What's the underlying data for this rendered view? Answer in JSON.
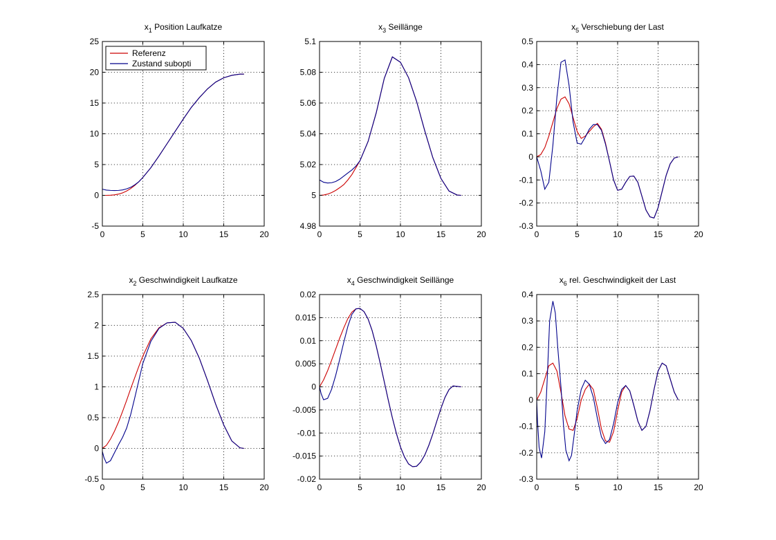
{
  "colors": {
    "reference": "#cc0000",
    "state": "#00008b",
    "grid": "#000000",
    "axes": "#000000"
  },
  "legend": {
    "placement": "top-left",
    "entries": [
      "Referenz",
      "Zustand subopti"
    ]
  },
  "chart_data": [
    {
      "type": "line",
      "title": {
        "sym": "x",
        "sub": "1",
        "text": "Position Laufkatze"
      },
      "xlim": [
        0,
        20
      ],
      "ylim": [
        -5,
        25
      ],
      "xticks": [
        0,
        5,
        10,
        15,
        20
      ],
      "xtick_labels": [
        "0",
        "5",
        "10",
        "15",
        "20"
      ],
      "yticks": [
        -5,
        0,
        5,
        10,
        15,
        20,
        25
      ],
      "ytick_labels": [
        "-5",
        "0",
        "5",
        "10",
        "15",
        "20",
        "25"
      ],
      "grid": true,
      "legend": true,
      "series": [
        {
          "name": "Referenz",
          "color": "#cc0000",
          "x": [
            0,
            0.5,
            1,
            1.5,
            2,
            2.5,
            3,
            3.5,
            4,
            4.5,
            5,
            6,
            7,
            8,
            9,
            10,
            11,
            12,
            13,
            14,
            15,
            16,
            17,
            17.5
          ],
          "y": [
            0,
            0,
            0.02,
            0.08,
            0.2,
            0.4,
            0.7,
            1.1,
            1.6,
            2.2,
            2.9,
            4.5,
            6.4,
            8.4,
            10.4,
            12.4,
            14.3,
            15.9,
            17.3,
            18.4,
            19.1,
            19.5,
            19.7,
            19.7
          ]
        },
        {
          "name": "Zustand subopti",
          "color": "#00008b",
          "x": [
            0,
            0.5,
            1,
            1.5,
            2,
            2.5,
            3,
            3.5,
            4,
            4.5,
            5,
            6,
            7,
            8,
            9,
            10,
            11,
            12,
            13,
            14,
            15,
            16,
            17,
            17.5
          ],
          "y": [
            1.0,
            0.85,
            0.8,
            0.78,
            0.8,
            0.88,
            1.05,
            1.3,
            1.7,
            2.2,
            2.9,
            4.5,
            6.4,
            8.4,
            10.4,
            12.4,
            14.3,
            15.9,
            17.3,
            18.4,
            19.1,
            19.5,
            19.7,
            19.7
          ]
        }
      ]
    },
    {
      "type": "line",
      "title": {
        "sym": "x",
        "sub": "3",
        "text": "Seillänge"
      },
      "xlim": [
        0,
        20
      ],
      "ylim": [
        4.98,
        5.1
      ],
      "xticks": [
        0,
        5,
        10,
        15,
        20
      ],
      "xtick_labels": [
        "0",
        "5",
        "10",
        "15",
        "20"
      ],
      "yticks": [
        4.98,
        5,
        5.02,
        5.04,
        5.06,
        5.08,
        5.1
      ],
      "ytick_labels": [
        "4.98",
        "5",
        "5.02",
        "5.04",
        "5.06",
        "5.08",
        "5.1"
      ],
      "grid": true,
      "legend": false,
      "series": [
        {
          "color": "#cc0000",
          "x": [
            0,
            0.5,
            1,
            1.5,
            2,
            2.5,
            3,
            3.5,
            4,
            4.5,
            5,
            6,
            7,
            8,
            9,
            10,
            11,
            12,
            13,
            14,
            15,
            16,
            17,
            17.5
          ],
          "y": [
            5,
            5.0002,
            5.0008,
            5.0018,
            5.0032,
            5.005,
            5.007,
            5.01,
            5.0135,
            5.018,
            5.0225,
            5.035,
            5.0535,
            5.076,
            5.09,
            5.0865,
            5.0765,
            5.061,
            5.042,
            5.0245,
            5.011,
            5.0028,
            5.0002,
            5
          ]
        },
        {
          "color": "#00008b",
          "x": [
            0,
            0.5,
            1,
            1.5,
            2,
            2.5,
            3,
            3.5,
            4,
            4.5,
            5,
            6,
            7,
            8,
            9,
            10,
            11,
            12,
            13,
            14,
            15,
            16,
            17,
            17.5
          ],
          "y": [
            5.01,
            5.0085,
            5.008,
            5.0082,
            5.009,
            5.0105,
            5.0125,
            5.0145,
            5.0165,
            5.019,
            5.0225,
            5.035,
            5.0535,
            5.076,
            5.09,
            5.0865,
            5.0765,
            5.061,
            5.042,
            5.0245,
            5.011,
            5.0028,
            5.0002,
            5
          ]
        }
      ]
    },
    {
      "type": "line",
      "title": {
        "sym": "x",
        "sub": "5",
        "text": "Verschiebung der Last"
      },
      "xlim": [
        0,
        20
      ],
      "ylim": [
        -0.3,
        0.5
      ],
      "xticks": [
        0,
        5,
        10,
        15,
        20
      ],
      "xtick_labels": [
        "0",
        "5",
        "10",
        "15",
        "20"
      ],
      "yticks": [
        -0.3,
        -0.2,
        -0.1,
        0,
        0.1,
        0.2,
        0.3,
        0.4,
        0.5
      ],
      "ytick_labels": [
        "-0.3",
        "-0.2",
        "-0.1",
        "0",
        "0.1",
        "0.2",
        "0.3",
        "0.4",
        "0.5"
      ],
      "grid": true,
      "legend": false,
      "series": [
        {
          "color": "#cc0000",
          "x": [
            0,
            0.5,
            1,
            1.5,
            2,
            2.5,
            3,
            3.5,
            4,
            4.5,
            5,
            5.5,
            6,
            6.5,
            7,
            7.5,
            8,
            8.5,
            9,
            9.5,
            10,
            10.5,
            11,
            11.5,
            12,
            12.5,
            13,
            13.5,
            14,
            14.5,
            15,
            15.5,
            16,
            16.5,
            17,
            17.5
          ],
          "y": [
            0,
            0.01,
            0.04,
            0.09,
            0.15,
            0.21,
            0.25,
            0.26,
            0.23,
            0.17,
            0.11,
            0.08,
            0.09,
            0.11,
            0.13,
            0.145,
            0.12,
            0.06,
            -0.02,
            -0.1,
            -0.145,
            -0.14,
            -0.11,
            -0.085,
            -0.083,
            -0.11,
            -0.17,
            -0.23,
            -0.26,
            -0.265,
            -0.22,
            -0.15,
            -0.08,
            -0.03,
            -0.005,
            0
          ]
        },
        {
          "color": "#00008b",
          "x": [
            0,
            0.5,
            1,
            1.5,
            2,
            2.5,
            3,
            3.5,
            4,
            4.5,
            5,
            5.5,
            6,
            6.5,
            7,
            7.5,
            8,
            8.5,
            9,
            9.5,
            10,
            10.5,
            11,
            11.5,
            12,
            12.5,
            13,
            13.5,
            14,
            14.5,
            15,
            15.5,
            16,
            16.5,
            17,
            17.5
          ],
          "y": [
            0,
            -0.06,
            -0.14,
            -0.11,
            0.05,
            0.26,
            0.41,
            0.42,
            0.31,
            0.15,
            0.06,
            0.055,
            0.085,
            0.12,
            0.14,
            0.14,
            0.115,
            0.055,
            -0.02,
            -0.1,
            -0.145,
            -0.14,
            -0.11,
            -0.085,
            -0.083,
            -0.11,
            -0.17,
            -0.23,
            -0.26,
            -0.265,
            -0.22,
            -0.15,
            -0.08,
            -0.03,
            -0.005,
            0
          ]
        }
      ]
    },
    {
      "type": "line",
      "title": {
        "sym": "x",
        "sub": "2",
        "text": "Geschwindigkeit Laufkatze"
      },
      "xlim": [
        0,
        20
      ],
      "ylim": [
        -0.5,
        2.5
      ],
      "xticks": [
        0,
        5,
        10,
        15,
        20
      ],
      "xtick_labels": [
        "0",
        "5",
        "10",
        "15",
        "20"
      ],
      "yticks": [
        -0.5,
        0,
        0.5,
        1,
        1.5,
        2,
        2.5
      ],
      "ytick_labels": [
        "-0.5",
        "0",
        "0.5",
        "1",
        "1.5",
        "2",
        "2.5"
      ],
      "grid": true,
      "legend": false,
      "series": [
        {
          "color": "#cc0000",
          "x": [
            0,
            0.5,
            1,
            1.5,
            2,
            2.5,
            3,
            3.5,
            4,
            4.5,
            5,
            6,
            7,
            8,
            9,
            10,
            11,
            12,
            13,
            14,
            15,
            16,
            17,
            17.5
          ],
          "y": [
            0,
            0.05,
            0.15,
            0.28,
            0.43,
            0.6,
            0.78,
            0.97,
            1.15,
            1.33,
            1.5,
            1.78,
            1.96,
            2.04,
            2.05,
            1.95,
            1.75,
            1.46,
            1.1,
            0.72,
            0.38,
            0.12,
            0.01,
            0
          ]
        },
        {
          "color": "#00008b",
          "x": [
            0,
            0.2,
            0.5,
            1,
            1.5,
            2,
            2.5,
            3,
            3.5,
            4,
            4.5,
            5,
            6,
            7,
            8,
            9,
            10,
            11,
            12,
            13,
            14,
            15,
            16,
            17,
            17.5
          ],
          "y": [
            -0.05,
            -0.15,
            -0.24,
            -0.2,
            -0.07,
            0.06,
            0.18,
            0.33,
            0.55,
            0.82,
            1.1,
            1.38,
            1.74,
            1.95,
            2.04,
            2.05,
            1.95,
            1.75,
            1.46,
            1.1,
            0.72,
            0.38,
            0.12,
            0.01,
            0
          ]
        }
      ]
    },
    {
      "type": "line",
      "title": {
        "sym": "x",
        "sub": "4",
        "text": "Geschwindigkeit Seillänge"
      },
      "xlim": [
        0,
        20
      ],
      "ylim": [
        -0.02,
        0.02
      ],
      "xticks": [
        0,
        5,
        10,
        15,
        20
      ],
      "xtick_labels": [
        "0",
        "5",
        "10",
        "15",
        "20"
      ],
      "yticks": [
        -0.02,
        -0.015,
        -0.01,
        -0.005,
        0,
        0.005,
        0.01,
        0.015,
        0.02
      ],
      "ytick_labels": [
        "-0.02",
        "-0.015",
        "-0.01",
        "-0.005",
        "0",
        "0.005",
        "0.01",
        "0.015",
        "0.02"
      ],
      "grid": true,
      "legend": false,
      "series": [
        {
          "color": "#cc0000",
          "x": [
            0,
            0.5,
            1,
            1.5,
            2,
            2.5,
            3,
            3.5,
            4,
            4.5,
            5,
            5.5,
            6,
            6.5,
            7,
            7.5,
            8,
            8.5,
            9,
            9.5,
            10,
            10.5,
            11,
            11.5,
            12,
            12.5,
            13,
            13.5,
            14,
            14.5,
            15,
            15.5,
            16,
            16.5,
            17,
            17.5
          ],
          "y": [
            0,
            0.0015,
            0.0035,
            0.0058,
            0.0082,
            0.0106,
            0.0128,
            0.0148,
            0.0162,
            0.0169,
            0.017,
            0.0163,
            0.0147,
            0.0122,
            0.0089,
            0.0051,
            0.0011,
            -0.0029,
            -0.0067,
            -0.0101,
            -0.013,
            -0.0152,
            -0.0167,
            -0.0173,
            -0.0172,
            -0.0163,
            -0.0148,
            -0.0127,
            -0.0102,
            -0.0074,
            -0.0047,
            -0.0023,
            -0.0006,
            0.0002,
            0.0001,
            0
          ]
        },
        {
          "color": "#00008b",
          "x": [
            0,
            0.2,
            0.5,
            1,
            1.5,
            2,
            2.5,
            3,
            3.5,
            4,
            4.5,
            5,
            5.5,
            6,
            6.5,
            7,
            7.5,
            8,
            8.5,
            9,
            9.5,
            10,
            10.5,
            11,
            11.5,
            12,
            12.5,
            13,
            13.5,
            14,
            14.5,
            15,
            15.5,
            16,
            16.5,
            17,
            17.5
          ],
          "y": [
            0,
            -0.0015,
            -0.0028,
            -0.0025,
            -0.0005,
            0.0025,
            0.006,
            0.0097,
            0.0131,
            0.0157,
            0.0169,
            0.017,
            0.0163,
            0.0147,
            0.0122,
            0.0089,
            0.0051,
            0.0011,
            -0.0029,
            -0.0067,
            -0.0101,
            -0.013,
            -0.0152,
            -0.0167,
            -0.0173,
            -0.0172,
            -0.0163,
            -0.0148,
            -0.0127,
            -0.0102,
            -0.0074,
            -0.0047,
            -0.0023,
            -0.0006,
            0.0002,
            0.0001,
            0
          ]
        }
      ]
    },
    {
      "type": "line",
      "title": {
        "sym": "x",
        "sub": "6",
        "text": "rel. Geschwindigkeit der Last"
      },
      "xlim": [
        0,
        20
      ],
      "ylim": [
        -0.3,
        0.4
      ],
      "xticks": [
        0,
        5,
        10,
        15,
        20
      ],
      "xtick_labels": [
        "0",
        "5",
        "10",
        "15",
        "20"
      ],
      "yticks": [
        -0.3,
        -0.2,
        -0.1,
        0,
        0.1,
        0.2,
        0.3,
        0.4
      ],
      "ytick_labels": [
        "-0.3",
        "-0.2",
        "-0.1",
        "0",
        "0.1",
        "0.2",
        "0.3",
        "0.4"
      ],
      "grid": true,
      "legend": false,
      "series": [
        {
          "color": "#cc0000",
          "x": [
            0,
            0.5,
            1,
            1.5,
            2,
            2.5,
            3,
            3.5,
            4,
            4.5,
            5,
            5.5,
            6,
            6.5,
            7,
            7.5,
            8,
            8.5,
            9,
            9.5,
            10,
            10.5,
            11,
            11.5,
            12,
            12.5,
            13,
            13.5,
            14,
            14.5,
            15,
            15.5,
            16,
            16.5,
            17,
            17.5
          ],
          "y": [
            0,
            0.03,
            0.08,
            0.13,
            0.14,
            0.11,
            0.03,
            -0.06,
            -0.11,
            -0.115,
            -0.07,
            0,
            0.04,
            0.06,
            0.04,
            -0.03,
            -0.11,
            -0.155,
            -0.16,
            -0.12,
            -0.04,
            0.03,
            0.055,
            0.035,
            -0.02,
            -0.08,
            -0.115,
            -0.1,
            -0.04,
            0.04,
            0.11,
            0.14,
            0.13,
            0.08,
            0.03,
            0
          ]
        },
        {
          "color": "#00008b",
          "x": [
            0,
            0.1,
            0.3,
            0.6,
            1,
            1.3,
            1.6,
            2,
            2.3,
            2.6,
            3,
            3.3,
            3.6,
            4,
            4.3,
            4.6,
            5,
            5.5,
            6,
            6.5,
            7,
            7.5,
            8,
            8.5,
            9,
            9.5,
            10,
            10.5,
            11,
            11.5,
            12,
            12.5,
            13,
            13.5,
            14,
            14.5,
            15,
            15.5,
            16,
            16.5,
            17,
            17.5
          ],
          "y": [
            0,
            -0.08,
            -0.18,
            -0.22,
            -0.12,
            0.08,
            0.3,
            0.375,
            0.33,
            0.2,
            0.05,
            -0.09,
            -0.19,
            -0.23,
            -0.21,
            -0.14,
            -0.04,
            0.04,
            0.075,
            0.06,
            0.01,
            -0.07,
            -0.14,
            -0.165,
            -0.15,
            -0.09,
            -0.01,
            0.04,
            0.055,
            0.035,
            -0.02,
            -0.08,
            -0.115,
            -0.1,
            -0.04,
            0.04,
            0.11,
            0.14,
            0.13,
            0.08,
            0.03,
            0
          ]
        }
      ]
    }
  ]
}
